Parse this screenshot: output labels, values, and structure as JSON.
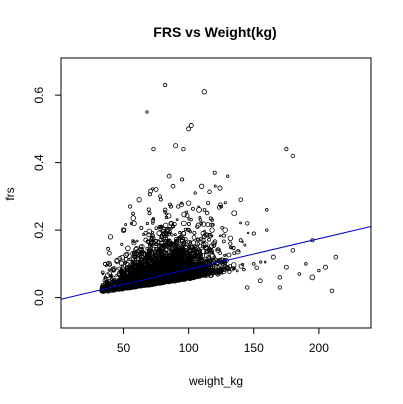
{
  "chart_data": {
    "type": "scatter",
    "title": "FRS vs Weight(kg)",
    "xlabel": "weight_kg",
    "ylabel": "frs",
    "xlim": [
      2,
      240
    ],
    "ylim": [
      -0.09,
      0.71
    ],
    "x_ticks": [
      50,
      100,
      150,
      200
    ],
    "y_ticks": [
      0.0,
      0.2,
      0.4,
      0.6
    ],
    "x_tick_labels": [
      "50",
      "100",
      "150",
      "200"
    ],
    "y_tick_labels": [
      "0.0",
      "0.2",
      "0.4",
      "0.6"
    ],
    "grid": false,
    "point_color": "#000000",
    "line_color": "#0000cc",
    "regression_line": {
      "intercept": -0.0065,
      "slope": 0.000905
    },
    "series": [
      {
        "label_points": [
          [
            82,
            0.63
          ],
          [
            112,
            0.61
          ],
          [
            102,
            0.51
          ],
          [
            100,
            0.5
          ],
          [
            68,
            0.55
          ],
          [
            90,
            0.45
          ],
          [
            96,
            0.44
          ],
          [
            73,
            0.44
          ],
          [
            175,
            0.44
          ],
          [
            180,
            0.42
          ],
          [
            120,
            0.37
          ],
          [
            130,
            0.36
          ],
          [
            88,
            0.33
          ],
          [
            110,
            0.33
          ],
          [
            140,
            0.29
          ],
          [
            160,
            0.26
          ],
          [
            160,
            0.2
          ],
          [
            195,
            0.17
          ],
          [
            205,
            0.09
          ],
          [
            213,
            0.12
          ],
          [
            210,
            0.02
          ],
          [
            195,
            0.06
          ],
          [
            185,
            0.07
          ],
          [
            170,
            0.06
          ],
          [
            175,
            0.09
          ],
          [
            55,
            0.27
          ],
          [
            62,
            0.29
          ],
          [
            75,
            0.32
          ],
          [
            78,
            0.3
          ],
          [
            85,
            0.36
          ],
          [
            95,
            0.35
          ],
          [
            105,
            0.31
          ],
          [
            115,
            0.28
          ],
          [
            125,
            0.27
          ],
          [
            135,
            0.25
          ],
          [
            145,
            0.22
          ],
          [
            150,
            0.19
          ],
          [
            140,
            0.17
          ],
          [
            128,
            0.2
          ],
          [
            118,
            0.23
          ],
          [
            40,
            0.18
          ],
          [
            45,
            0.11
          ],
          [
            36,
            0.06
          ],
          [
            50,
            0.2
          ],
          [
            58,
            0.22
          ],
          [
            70,
            0.25
          ],
          [
            82,
            0.26
          ],
          [
            92,
            0.27
          ],
          [
            100,
            0.28
          ],
          [
            108,
            0.26
          ],
          [
            118,
            0.2
          ],
          [
            132,
            0.16
          ],
          [
            150,
            0.1
          ],
          [
            165,
            0.12
          ],
          [
            180,
            0.14
          ],
          [
            190,
            0.1
          ],
          [
            200,
            0.08
          ],
          [
            155,
            0.05
          ],
          [
            145,
            0.03
          ],
          [
            170,
            0.03
          ]
        ]
      }
    ],
    "dense_cloud": {
      "count": 4200,
      "x_center": 76,
      "x_spread": 17,
      "y_base": 0.02,
      "y_scale": 0.055
    }
  }
}
